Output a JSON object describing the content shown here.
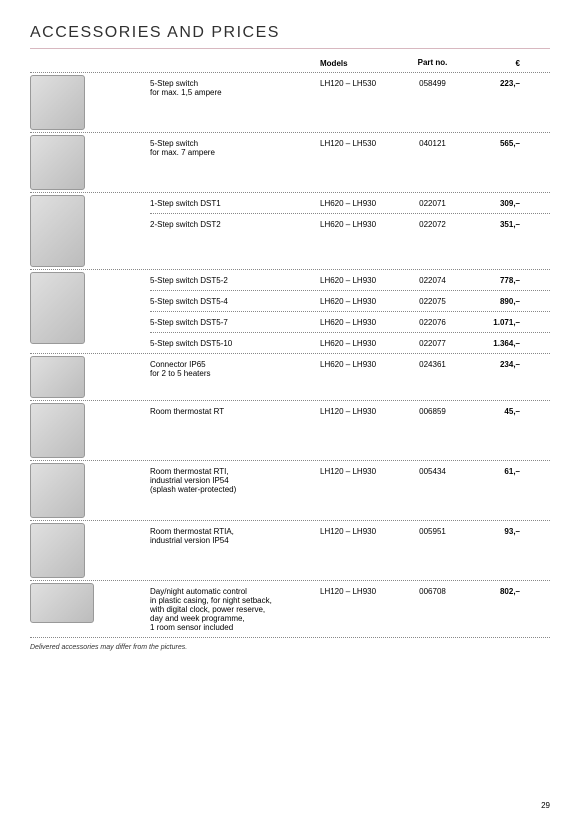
{
  "title": "ACCESSORIES AND PRICES",
  "headers": {
    "models": "Models",
    "part": "Part no.",
    "price": "€"
  },
  "footnote": "Delivered accessories may differ from the pictures.",
  "page_number": "29",
  "groups": [
    {
      "img_class": "img-box",
      "rows": [
        {
          "desc": "5-Step switch\nfor max. 1,5 ampere",
          "model": "LH120 – LH530",
          "part": "058499",
          "price": "223,–"
        }
      ]
    },
    {
      "img_class": "img-box",
      "rows": [
        {
          "desc": "5-Step switch\nfor max. 7 ampere",
          "model": "LH120 – LH530",
          "part": "040121",
          "price": "565,–"
        }
      ]
    },
    {
      "img_class": "img-box img-tall",
      "rows": [
        {
          "desc": "1-Step switch DST1",
          "model": "LH620 – LH930",
          "part": "022071",
          "price": "309,–"
        },
        {
          "desc": "2-Step switch DST2",
          "model": "LH620 – LH930",
          "part": "022072",
          "price": "351,–"
        }
      ]
    },
    {
      "img_class": "img-box img-tall",
      "rows": [
        {
          "desc": "5-Step switch DST5-2",
          "model": "LH620 – LH930",
          "part": "022074",
          "price": "778,–"
        },
        {
          "desc": "5-Step switch DST5-4",
          "model": "LH620 – LH930",
          "part": "022075",
          "price": "890,–"
        },
        {
          "desc": "5-Step switch DST5-7",
          "model": "LH620 – LH930",
          "part": "022076",
          "price": "1.071,–"
        },
        {
          "desc": "5-Step switch DST5-10",
          "model": "LH620 – LH930",
          "part": "022077",
          "price": "1.364,–"
        }
      ]
    },
    {
      "img_class": "img-box img-short",
      "rows": [
        {
          "desc": "Connector IP65\nfor 2 to 5 heaters",
          "model": "LH620 – LH930",
          "part": "024361",
          "price": "234,–"
        }
      ]
    },
    {
      "img_class": "img-box",
      "rows": [
        {
          "desc": "Room thermostat RT",
          "model": "LH120 – LH930",
          "part": "006859",
          "price": "45,–"
        }
      ]
    },
    {
      "img_class": "img-box",
      "rows": [
        {
          "desc": "Room thermostat RTI,\nindustrial version IP54\n(splash water-protected)",
          "model": "LH120 – LH930",
          "part": "005434",
          "price": "61,–"
        }
      ]
    },
    {
      "img_class": "img-box",
      "rows": [
        {
          "desc": "Room thermostat RTIA,\nindustrial version IP54",
          "model": "LH120 – LH930",
          "part": "005951",
          "price": "93,–"
        }
      ]
    },
    {
      "img_class": "img-box img-wide",
      "rows": [
        {
          "desc": "Day/night automatic control\nin plastic casing, for night setback,\nwith digital clock, power reserve,\nday and week programme,\n1 room sensor included",
          "model": "LH120 – LH930",
          "part": "006708",
          "price": "802,–"
        }
      ]
    }
  ]
}
